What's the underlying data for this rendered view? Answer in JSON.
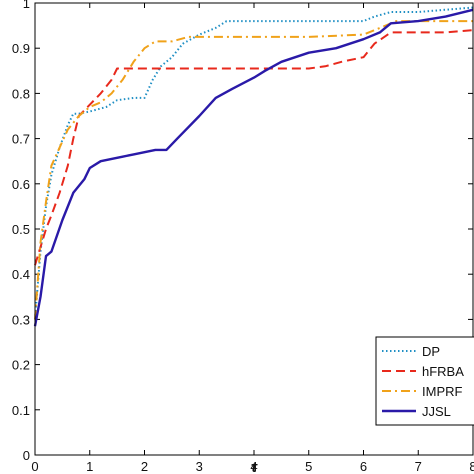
{
  "chart_data": {
    "type": "line",
    "xlabel": "τ",
    "ylabel": "",
    "title": "",
    "xlim": [
      0,
      8
    ],
    "ylim": [
      0,
      1
    ],
    "x_ticks": [
      "0",
      "1",
      "2",
      "3",
      "4",
      "5",
      "6",
      "7",
      "8"
    ],
    "y_ticks": [
      "0",
      "0.1",
      "0.2",
      "0.3",
      "0.4",
      "0.5",
      "0.6",
      "0.7",
      "0.8",
      "0.9",
      "1"
    ],
    "legend_position": "bottom-right",
    "grid": false,
    "series": [
      {
        "name": "DP",
        "color": "#1f8fc4",
        "dash": "dotted",
        "x": [
          0,
          0.1,
          0.2,
          0.3,
          0.45,
          0.6,
          0.7,
          0.8,
          1.0,
          1.3,
          1.5,
          1.8,
          2.0,
          2.15,
          2.3,
          2.5,
          2.7,
          3.0,
          3.3,
          3.5,
          4.0,
          5.0,
          6.0,
          6.2,
          6.5,
          7.0,
          8.0
        ],
        "y": [
          0.3,
          0.45,
          0.55,
          0.62,
          0.68,
          0.73,
          0.755,
          0.755,
          0.76,
          0.77,
          0.785,
          0.79,
          0.79,
          0.83,
          0.86,
          0.88,
          0.91,
          0.93,
          0.945,
          0.96,
          0.96,
          0.96,
          0.96,
          0.97,
          0.98,
          0.98,
          0.99
        ]
      },
      {
        "name": "hFRBA",
        "color": "#e8291c",
        "dash": "dashed",
        "x": [
          0,
          0.1,
          0.2,
          0.3,
          0.45,
          0.6,
          0.7,
          0.8,
          1.0,
          1.2,
          1.4,
          1.5,
          2.0,
          3.0,
          4.0,
          4.5,
          5.0,
          5.3,
          5.6,
          6.0,
          6.2,
          6.5,
          7.0,
          7.5,
          8.0
        ],
        "y": [
          0.42,
          0.46,
          0.5,
          0.53,
          0.58,
          0.64,
          0.7,
          0.75,
          0.775,
          0.8,
          0.83,
          0.855,
          0.855,
          0.855,
          0.855,
          0.855,
          0.855,
          0.86,
          0.87,
          0.88,
          0.91,
          0.935,
          0.935,
          0.935,
          0.94
        ]
      },
      {
        "name": "IMPRF",
        "color": "#f0a21a",
        "dash": "dashdot",
        "x": [
          0,
          0.1,
          0.2,
          0.3,
          0.45,
          0.6,
          0.8,
          1.0,
          1.2,
          1.4,
          1.6,
          1.8,
          2.0,
          2.2,
          2.5,
          2.8,
          3.0,
          4.0,
          5.0,
          6.0,
          6.3,
          6.6,
          7.0,
          8.0
        ],
        "y": [
          0.3,
          0.47,
          0.56,
          0.64,
          0.68,
          0.72,
          0.75,
          0.77,
          0.78,
          0.8,
          0.83,
          0.87,
          0.9,
          0.915,
          0.915,
          0.925,
          0.925,
          0.925,
          0.925,
          0.93,
          0.945,
          0.96,
          0.96,
          0.96
        ]
      },
      {
        "name": "JJSL",
        "color": "#2a1aa8",
        "dash": "solid",
        "x": [
          0,
          0.1,
          0.2,
          0.3,
          0.5,
          0.7,
          0.9,
          1.0,
          1.2,
          1.4,
          1.6,
          1.8,
          2.0,
          2.2,
          2.4,
          2.6,
          3.0,
          3.3,
          3.6,
          4.0,
          4.2,
          4.5,
          5.0,
          5.5,
          6.0,
          6.3,
          6.5,
          7.0,
          7.5,
          8.0
        ],
        "y": [
          0.285,
          0.35,
          0.44,
          0.45,
          0.52,
          0.58,
          0.61,
          0.635,
          0.65,
          0.655,
          0.66,
          0.665,
          0.67,
          0.675,
          0.675,
          0.7,
          0.75,
          0.79,
          0.81,
          0.835,
          0.85,
          0.87,
          0.89,
          0.9,
          0.92,
          0.935,
          0.955,
          0.96,
          0.97,
          0.985
        ]
      }
    ]
  }
}
